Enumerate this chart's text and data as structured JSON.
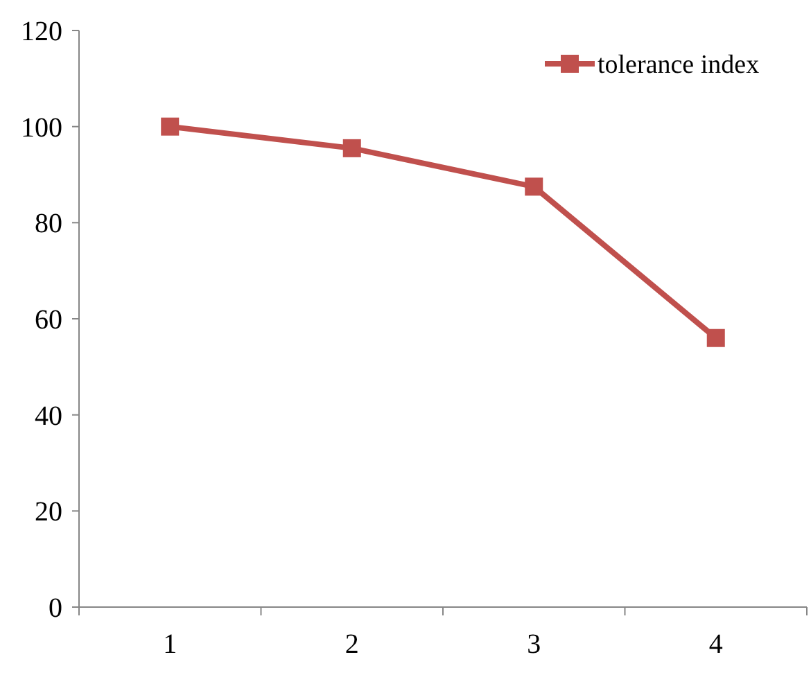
{
  "chart_data": {
    "type": "line",
    "categories": [
      "1",
      "2",
      "3",
      "4"
    ],
    "series": [
      {
        "name": "tolerance index",
        "color": "#c0504d",
        "values": [
          100,
          95.5,
          87.5,
          56
        ]
      }
    ],
    "ylim": [
      0,
      120
    ],
    "yticks": [
      0,
      20,
      40,
      60,
      80,
      100,
      120
    ],
    "grid": false,
    "legend": "top right",
    "marker": "square",
    "line_style": "solid"
  }
}
